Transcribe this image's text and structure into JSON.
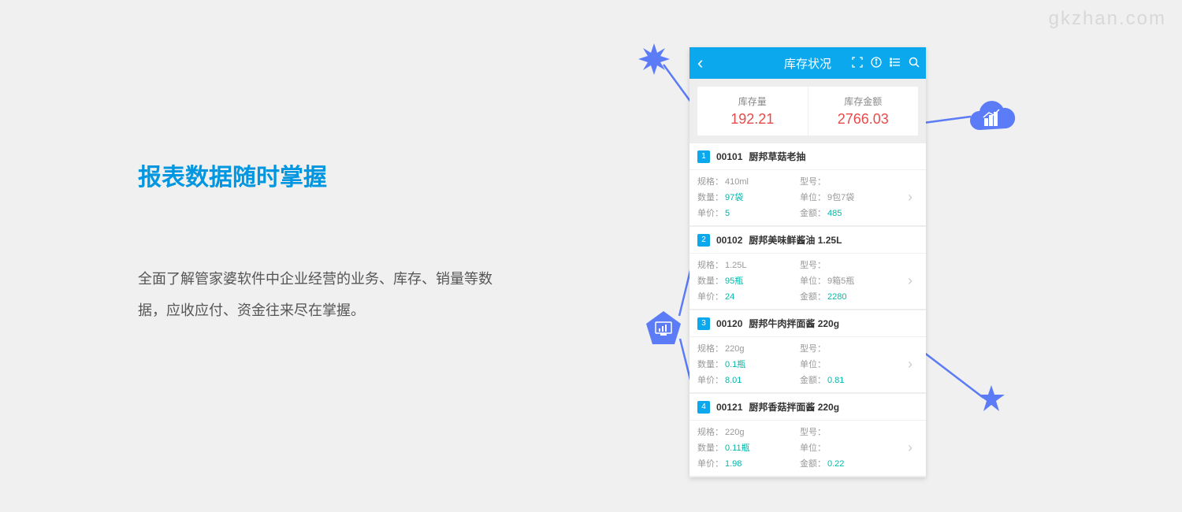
{
  "watermark": "gkzhan.com",
  "colors": {
    "heading": "#0096e0",
    "accent": "#0ca8ed",
    "shape": "#5b7bf7",
    "value_red": "#e84a4a",
    "value_teal": "#00b8a9",
    "bg": "#f0f0f0"
  },
  "left": {
    "heading": "报表数据随时掌握",
    "desc": "全面了解管家婆软件中企业经营的业务、库存、销量等数据，应收应付、资金往来尽在掌握。"
  },
  "phone": {
    "title": "库存状况",
    "summary": {
      "qty_label": "库存量",
      "qty_value": "192.21",
      "amount_label": "库存金额",
      "amount_value": "2766.03"
    },
    "fields": {
      "spec": "规格：",
      "model": "型号：",
      "qty": "数量：",
      "unit": "单位：",
      "price": "单价：",
      "amount": "金额："
    },
    "items": [
      {
        "num": "1",
        "code": "00101",
        "name": "厨邦草菇老抽",
        "spec": "410ml",
        "model": "",
        "qty": "97袋",
        "unit": "9包7袋",
        "price": "5",
        "amount": "485"
      },
      {
        "num": "2",
        "code": "00102",
        "name": "厨邦美味鲜酱油 1.25L",
        "spec": "1.25L",
        "model": "",
        "qty": "95瓶",
        "unit": "9箱5瓶",
        "price": "24",
        "amount": "2280"
      },
      {
        "num": "3",
        "code": "00120",
        "name": "厨邦牛肉拌面酱 220g",
        "spec": "220g",
        "model": "",
        "qty": "0.1瓶",
        "unit": "",
        "price": "8.01",
        "amount": "0.81"
      },
      {
        "num": "4",
        "code": "00121",
        "name": "厨邦香菇拌面酱 220g",
        "spec": "220g",
        "model": "",
        "qty": "0.11瓶",
        "unit": "",
        "price": "1.98",
        "amount": "0.22"
      }
    ]
  }
}
